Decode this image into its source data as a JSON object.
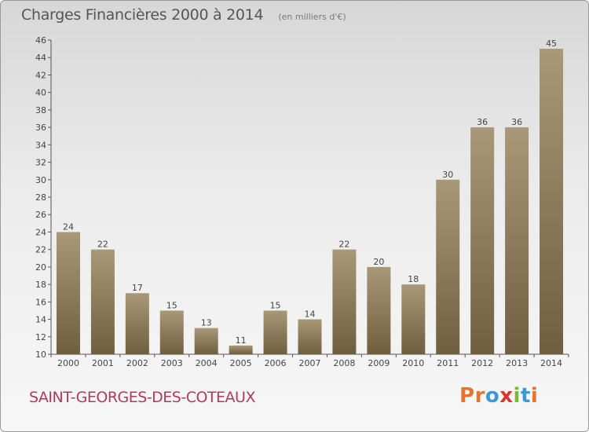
{
  "header": {
    "title": "Charges Financières 2000 à 2014",
    "unit": "(en milliers d'€)"
  },
  "footer": {
    "town": "SAINT-GEORGES-DES-COTEAUX",
    "brand": "Proxiti",
    "brand_colors": [
      "#e8732a",
      "#e8732a",
      "#3a9ad9",
      "#d9342b",
      "#7ab836",
      "#3a9ad9",
      "#e8732a"
    ]
  },
  "chart_data": {
    "type": "bar",
    "categories": [
      "2000",
      "2001",
      "2002",
      "2003",
      "2004",
      "2005",
      "2006",
      "2007",
      "2008",
      "2009",
      "2010",
      "2011",
      "2012",
      "2013",
      "2014"
    ],
    "values": [
      24,
      22,
      17,
      15,
      13,
      11,
      15,
      14,
      22,
      20,
      18,
      30,
      36,
      36,
      45
    ],
    "ylim": [
      10,
      46
    ],
    "yticks": [
      10,
      12,
      14,
      16,
      18,
      20,
      22,
      24,
      26,
      28,
      30,
      32,
      34,
      36,
      38,
      40,
      42,
      44,
      46
    ],
    "grid": false,
    "bar_color_light": "#a89878",
    "bar_color_dark": "#6f5f40"
  }
}
